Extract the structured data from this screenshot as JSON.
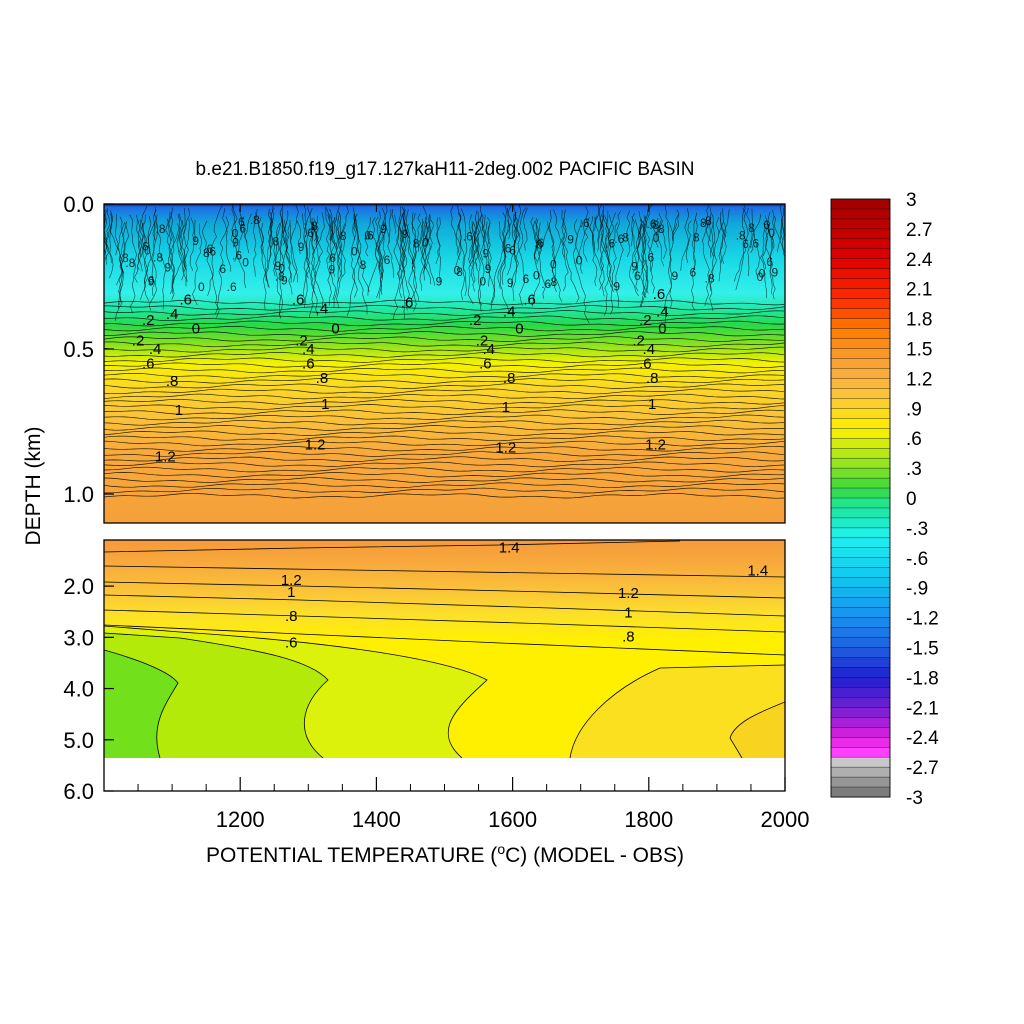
{
  "chart_data": {
    "type": "heatmap",
    "title": "b.e21.B1850.f19_g17.127kaH11-2deg.002 PACIFIC BASIN",
    "xlabel": "POTENTIAL TEMPERATURE (°C) (MODEL - OBS)",
    "xlabel_parts": {
      "before_sup": "POTENTIAL TEMPERATURE (",
      "sup": "o",
      "after_sup": "C) (MODEL - OBS)"
    },
    "ylabel": "DEPTH (km)",
    "xlim": [
      1000,
      2000
    ],
    "x_ticks": [
      1200,
      1400,
      1600,
      1800,
      2000
    ],
    "x_ticklabels": [
      "1200",
      "1400",
      "1600",
      "1800",
      "2000"
    ],
    "panels": [
      {
        "name": "upper",
        "ylim": [
          0.0,
          1.1
        ],
        "y_ticks": [
          0.0,
          0.5,
          1.0
        ],
        "y_ticklabels": [
          "0.0",
          "0.5",
          "1.0"
        ]
      },
      {
        "name": "lower",
        "ylim": [
          1.1,
          6.0
        ],
        "y_ticks": [
          2.0,
          3.0,
          4.0,
          5.0,
          6.0
        ],
        "y_ticklabels": [
          "2.0",
          "3.0",
          "4.0",
          "5.0",
          "6.0"
        ],
        "no_data_below_depth": 5.4
      }
    ],
    "colorbar": {
      "ticks": [
        3,
        2.7,
        2.4,
        2.1,
        1.8,
        1.5,
        1.2,
        0.9,
        0.6,
        0.3,
        0,
        -0.3,
        -0.6,
        -0.9,
        -1.2,
        -1.5,
        -1.8,
        -2.1,
        -2.4,
        -2.7,
        -3
      ],
      "ticklabels": [
        "3",
        "2.7",
        "2.4",
        "2.1",
        "1.8",
        "1.5",
        "1.2",
        ".9",
        ".6",
        ".3",
        "0",
        "-.3",
        "-.6",
        "-.9",
        "-1.2",
        "-1.5",
        "-1.8",
        "-2.1",
        "-2.4",
        "-2.7",
        "-3"
      ],
      "palette": "rainbow: dark-red (+3) → red → orange → yellow → green (0) → cyan → blue → purple → magenta → gray (-3)"
    },
    "upper_profile": {
      "depth": [
        0.0,
        0.1,
        0.2,
        0.3,
        0.35,
        0.4,
        0.45,
        0.5,
        0.55,
        0.6,
        0.7,
        0.8,
        0.9,
        1.0,
        1.1
      ],
      "value": [
        -2.5,
        -1.2,
        -0.8,
        -0.6,
        -0.5,
        -0.2,
        0.2,
        0.3,
        0.6,
        0.8,
        1.0,
        1.2,
        1.3,
        1.35,
        1.35
      ]
    },
    "lower_field": {
      "x": [
        1000,
        1100,
        1200,
        1300,
        1400,
        1500,
        1600,
        1700,
        1800,
        1900,
        2000
      ],
      "depth": [
        1.1,
        2.0,
        3.0,
        4.0,
        5.0,
        5.4
      ],
      "values": [
        [
          1.45,
          1.45,
          1.45,
          1.45,
          1.45,
          1.45,
          1.45,
          1.45,
          1.45,
          1.45,
          1.45
        ],
        [
          1.15,
          1.17,
          1.19,
          1.22,
          1.24,
          1.26,
          1.28,
          1.3,
          1.32,
          1.34,
          1.36
        ],
        [
          0.52,
          0.55,
          0.58,
          0.62,
          0.66,
          0.72,
          0.76,
          0.8,
          0.82,
          0.84,
          0.86
        ],
        [
          0.34,
          0.4,
          0.45,
          0.52,
          0.56,
          0.6,
          0.62,
          0.64,
          0.66,
          0.68,
          0.7
        ],
        [
          0.32,
          0.36,
          0.42,
          0.47,
          0.5,
          0.57,
          0.61,
          0.64,
          0.67,
          0.7,
          0.74
        ],
        [
          0.32,
          0.36,
          0.42,
          0.47,
          0.5,
          0.57,
          0.61,
          0.64,
          0.67,
          0.7,
          0.74
        ]
      ]
    },
    "contour_labels_upper": [
      {
        "text": "1.2",
        "x": 1090,
        "depth": 0.87
      },
      {
        "text": "1.2",
        "x": 1310,
        "depth": 0.83
      },
      {
        "text": "1.2",
        "x": 1590,
        "depth": 0.84
      },
      {
        "text": "1.2",
        "x": 1810,
        "depth": 0.83
      },
      {
        "text": "1",
        "x": 1110,
        "depth": 0.71
      },
      {
        "text": "1",
        "x": 1325,
        "depth": 0.69
      },
      {
        "text": "1",
        "x": 1590,
        "depth": 0.7
      },
      {
        "text": "1",
        "x": 1805,
        "depth": 0.69
      },
      {
        "text": ".8",
        "x": 1100,
        "depth": 0.61
      },
      {
        "text": ".8",
        "x": 1320,
        "depth": 0.6
      },
      {
        "text": ".8",
        "x": 1595,
        "depth": 0.6
      },
      {
        "text": ".8",
        "x": 1805,
        "depth": 0.6
      },
      {
        "text": ".6",
        "x": 1065,
        "depth": 0.55
      },
      {
        "text": ".6",
        "x": 1300,
        "depth": 0.55
      },
      {
        "text": ".6",
        "x": 1560,
        "depth": 0.55
      },
      {
        "text": ".6",
        "x": 1795,
        "depth": 0.55
      },
      {
        "text": ".4",
        "x": 1075,
        "depth": 0.5
      },
      {
        "text": ".4",
        "x": 1300,
        "depth": 0.5
      },
      {
        "text": ".4",
        "x": 1565,
        "depth": 0.5
      },
      {
        "text": ".4",
        "x": 1800,
        "depth": 0.5
      },
      {
        "text": ".2",
        "x": 1050,
        "depth": 0.47
      },
      {
        "text": ".2",
        "x": 1290,
        "depth": 0.47
      },
      {
        "text": ".2",
        "x": 1555,
        "depth": 0.47
      },
      {
        "text": ".2",
        "x": 1785,
        "depth": 0.47
      },
      {
        "text": "0",
        "x": 1135,
        "depth": 0.43
      },
      {
        "text": "0",
        "x": 1340,
        "depth": 0.43
      },
      {
        "text": "0",
        "x": 1610,
        "depth": 0.43
      },
      {
        "text": "0",
        "x": 1820,
        "depth": 0.43
      },
      {
        "text": ".2",
        "x": 1065,
        "depth": 0.4
      },
      {
        "text": ".2",
        "x": 1545,
        "depth": 0.4
      },
      {
        "text": ".2",
        "x": 1795,
        "depth": 0.4
      },
      {
        "text": ".4",
        "x": 1100,
        "depth": 0.38
      },
      {
        "text": ".4",
        "x": 1320,
        "depth": 0.36
      },
      {
        "text": ".4",
        "x": 1595,
        "depth": 0.37
      },
      {
        "text": ".4",
        "x": 1820,
        "depth": 0.37
      },
      {
        "text": ".6",
        "x": 1120,
        "depth": 0.33
      },
      {
        "text": ".6",
        "x": 1285,
        "depth": 0.33
      },
      {
        "text": ".6",
        "x": 1445,
        "depth": 0.34
      },
      {
        "text": ".6",
        "x": 1625,
        "depth": 0.33
      },
      {
        "text": ".6",
        "x": 1815,
        "depth": 0.31
      }
    ],
    "contour_labels_lower": [
      {
        "text": "1.4",
        "x": 1595,
        "depth": 1.25
      },
      {
        "text": "1.4",
        "x": 1960,
        "depth": 1.7
      },
      {
        "text": "1.2",
        "x": 1275,
        "depth": 1.88
      },
      {
        "text": "1.2",
        "x": 1770,
        "depth": 2.13
      },
      {
        "text": "1",
        "x": 1275,
        "depth": 2.12
      },
      {
        "text": "1",
        "x": 1770,
        "depth": 2.52
      },
      {
        "text": ".8",
        "x": 1275,
        "depth": 2.58
      },
      {
        "text": ".8",
        "x": 1770,
        "depth": 2.98
      },
      {
        "text": ".6",
        "x": 1275,
        "depth": 3.1
      }
    ]
  }
}
